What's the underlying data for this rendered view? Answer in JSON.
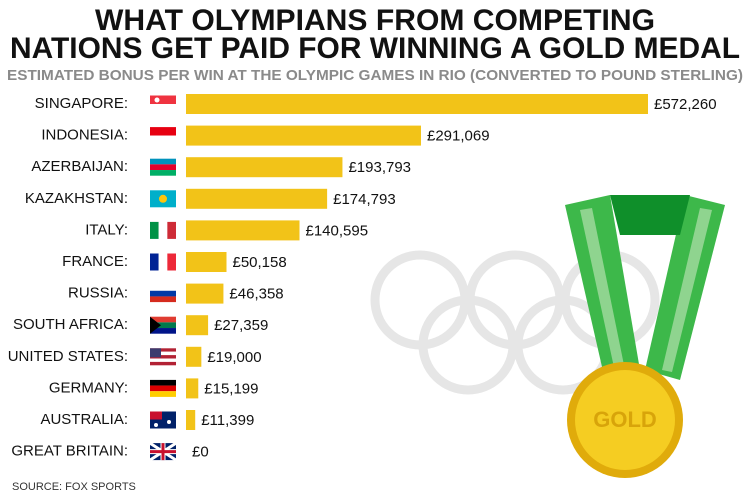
{
  "chart_data": {
    "type": "bar",
    "orientation": "horizontal",
    "title": [
      "WHAT OLYMPIANS FROM COMPETING",
      "NATIONS GET PAID FOR WINNING A GOLD MEDAL"
    ],
    "subtitle": "ESTIMATED BONUS PER WIN AT THE OLYMPIC GAMES IN RIO (CONVERTED TO POUND STERLING)",
    "categories": [
      "SINGAPORE:",
      "INDONESIA:",
      "AZERBAIJAN:",
      "KAZAKHSTAN:",
      "ITALY:",
      "FRANCE:",
      "RUSSIA:",
      "SOUTH AFRICA:",
      "UNITED STATES:",
      "GERMANY:",
      "AUSTRALIA:",
      "GREAT BRITAIN:"
    ],
    "values": [
      572260,
      291069,
      193793,
      174793,
      140595,
      50158,
      46358,
      27359,
      19000,
      15199,
      11399,
      0
    ],
    "value_labels": [
      "£572,260",
      "£291,069",
      "£193,793",
      "£174,793",
      "£140,595",
      "£50,158",
      "£46,358",
      "£27,359",
      "£19,000",
      "£15,199",
      "£11,399",
      "£0"
    ],
    "color": "#f2c318",
    "source": "SOURCE: FOX SPORTS",
    "medal_label": "GOLD"
  }
}
